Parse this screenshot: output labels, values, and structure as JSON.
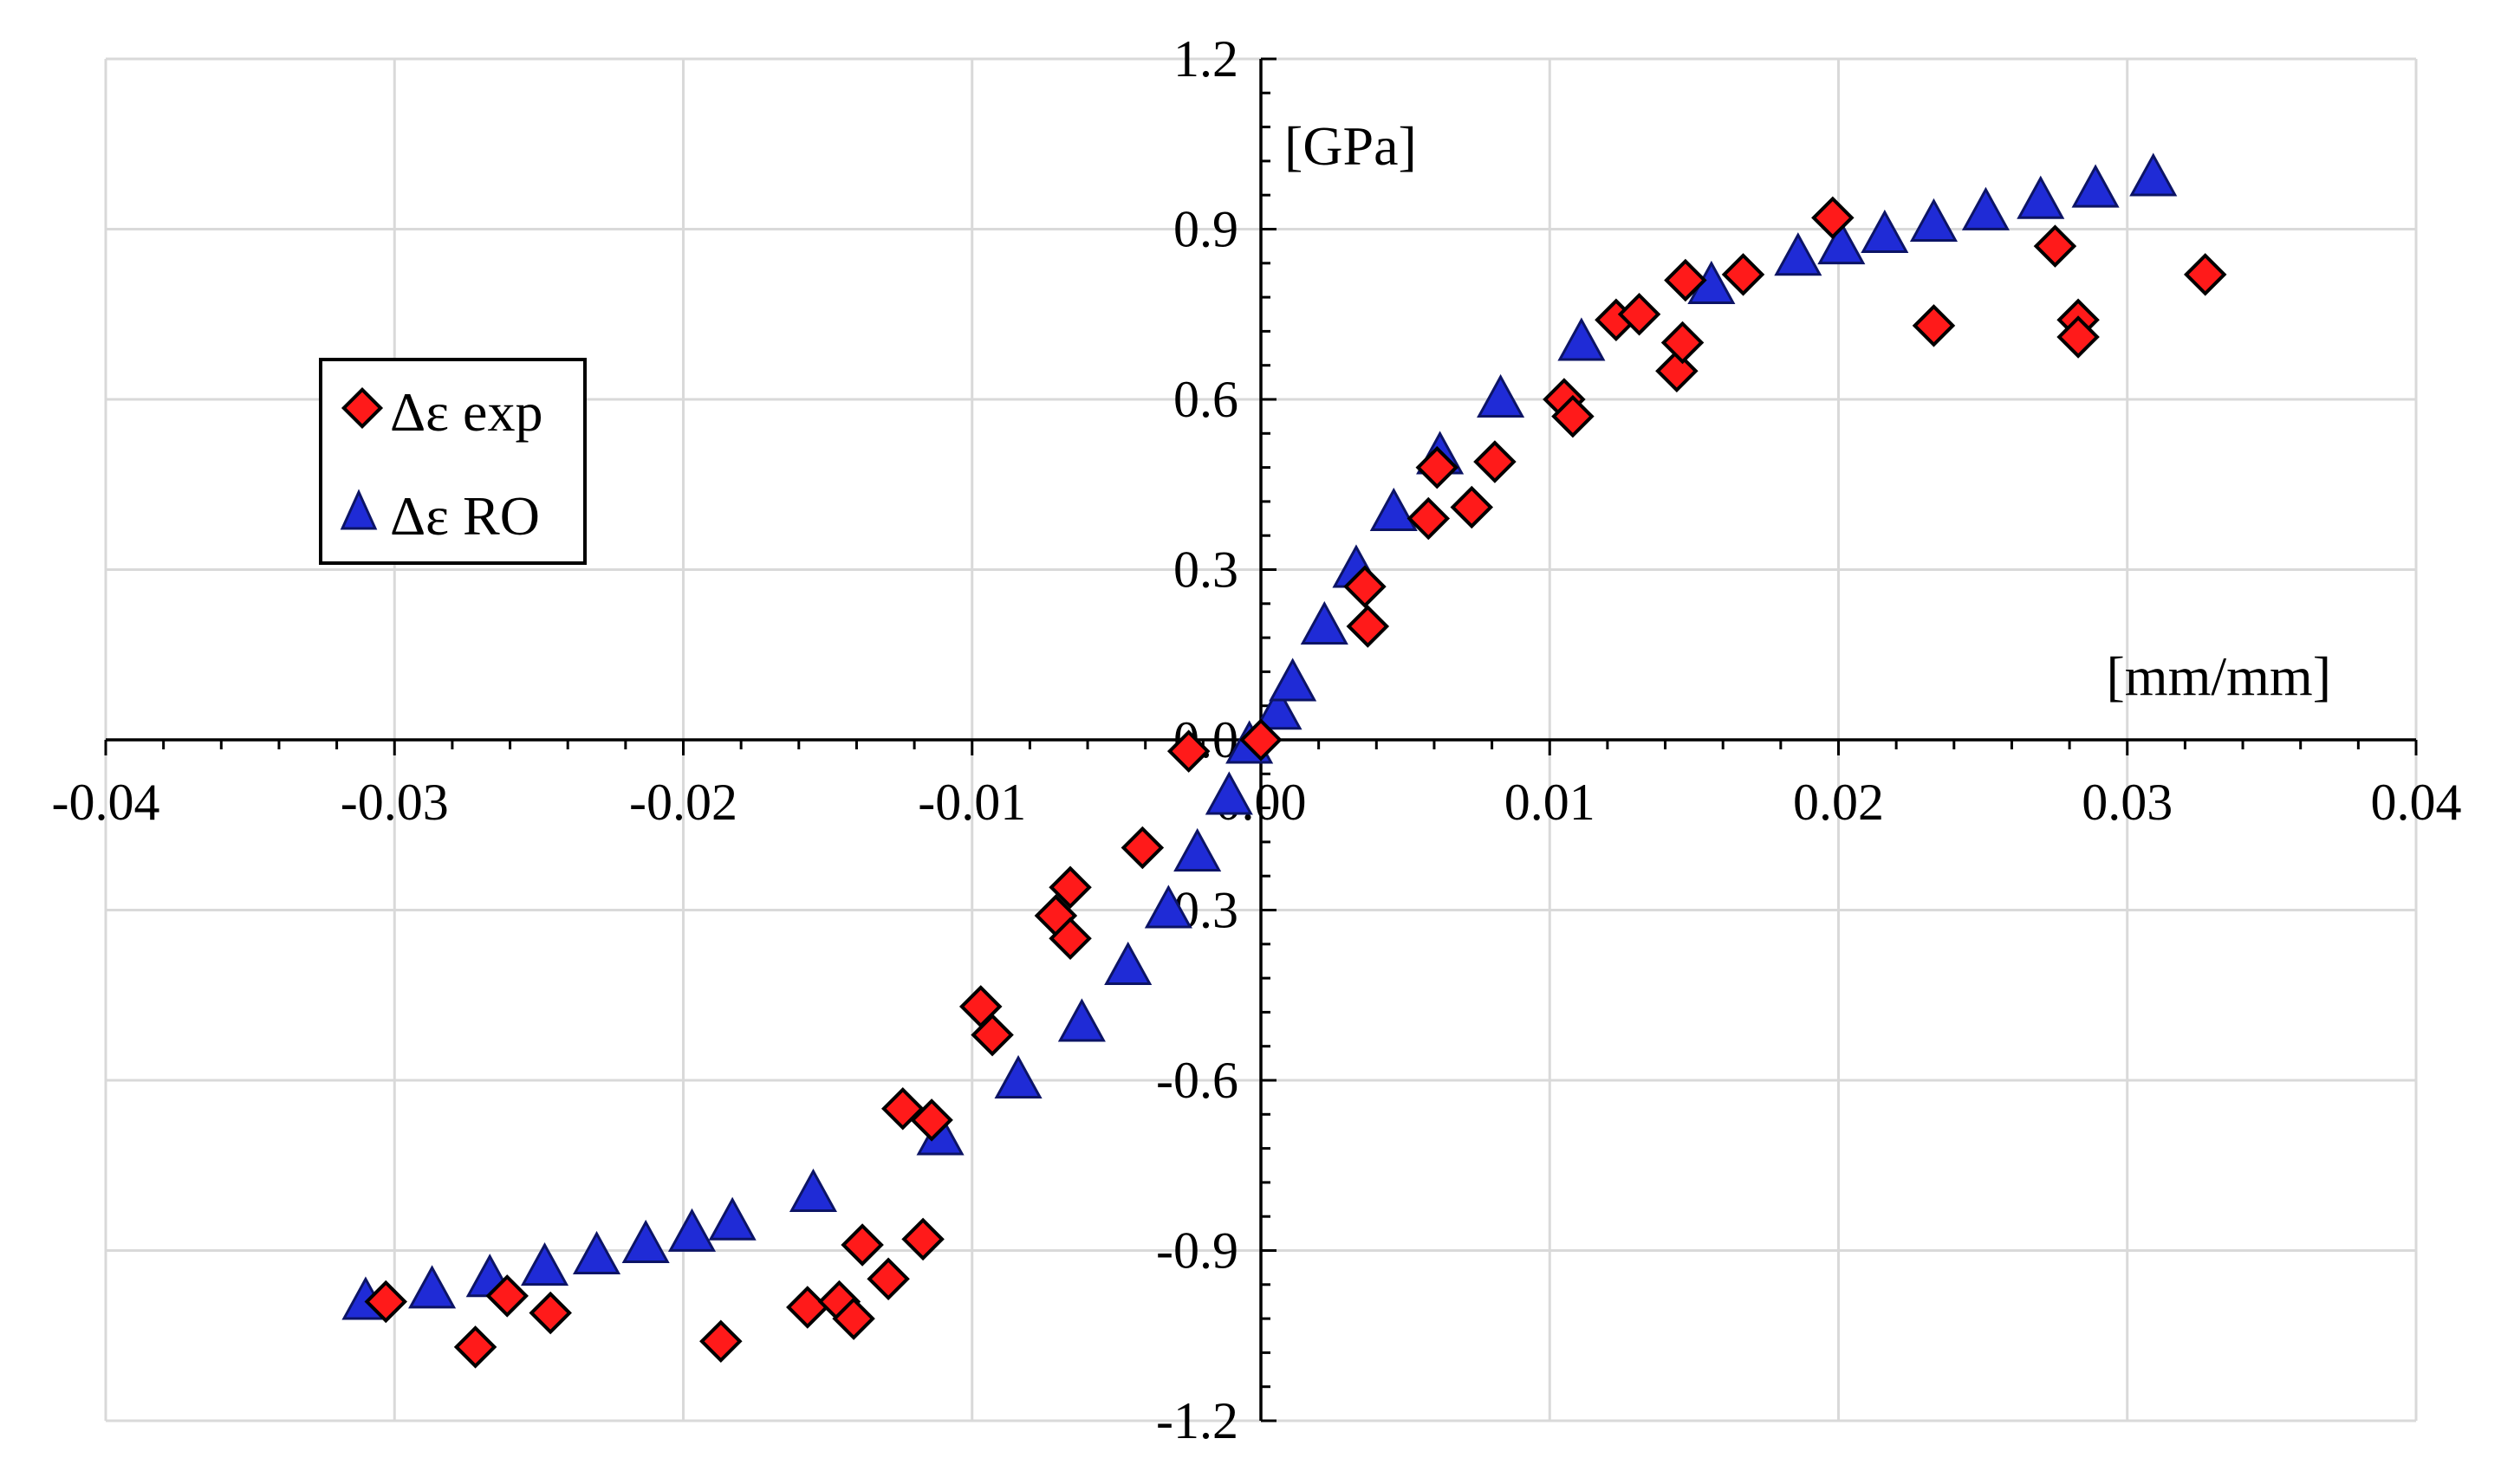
{
  "chart_data": {
    "type": "scatter",
    "title": "",
    "xlabel": "[mm/mm]",
    "ylabel": "[GPa]",
    "xlim": [
      -0.04,
      0.04
    ],
    "ylim": [
      -1.2,
      1.2
    ],
    "x_major_ticks": [
      -0.04,
      -0.03,
      -0.02,
      -0.01,
      0.0,
      0.01,
      0.02,
      0.03,
      0.04
    ],
    "y_major_ticks": [
      -1.2,
      -0.9,
      -0.6,
      -0.3,
      0.0,
      0.3,
      0.6,
      0.9,
      1.2
    ],
    "x_tick_labels": [
      "-0.04",
      "-0.03",
      "-0.02",
      "-0.01",
      "0.00",
      "0.01",
      "0.02",
      "0.03",
      "0.04"
    ],
    "y_tick_labels": [
      "-1.2",
      "-0.9",
      "-0.6",
      "-0.3",
      "0.0",
      "0.3",
      "0.6",
      "0.9",
      "1.2"
    ],
    "grid": true,
    "legend_position": "left",
    "series": [
      {
        "name": "Δε exp",
        "marker": "diamond",
        "color": "#ff1a1a",
        "points": [
          [
            -0.0303,
            -0.99
          ],
          [
            -0.0272,
            -1.07
          ],
          [
            -0.0261,
            -0.98
          ],
          [
            -0.0246,
            -1.01
          ],
          [
            -0.0187,
            -1.06
          ],
          [
            -0.0157,
            -1.0
          ],
          [
            -0.0146,
            -0.99
          ],
          [
            -0.0141,
            -1.02
          ],
          [
            -0.0138,
            -0.89
          ],
          [
            -0.0129,
            -0.95
          ],
          [
            -0.0124,
            -0.65
          ],
          [
            -0.0117,
            -0.88
          ],
          [
            -0.0114,
            -0.67
          ],
          [
            -0.0097,
            -0.47
          ],
          [
            -0.0093,
            -0.52
          ],
          [
            -0.0071,
            -0.31
          ],
          [
            -0.0066,
            -0.26
          ],
          [
            -0.0066,
            -0.35
          ],
          [
            -0.0041,
            -0.19
          ],
          [
            -0.0025,
            -0.02
          ],
          [
            0.0,
            0.0
          ],
          [
            0.0036,
            0.27
          ],
          [
            0.0037,
            0.2
          ],
          [
            0.0058,
            0.39
          ],
          [
            0.0061,
            0.48
          ],
          [
            0.0073,
            0.41
          ],
          [
            0.0081,
            0.49
          ],
          [
            0.0105,
            0.6
          ],
          [
            0.0108,
            0.57
          ],
          [
            0.0123,
            0.74
          ],
          [
            0.0131,
            0.75
          ],
          [
            0.0144,
            0.65
          ],
          [
            0.0146,
            0.7
          ],
          [
            0.0147,
            0.81
          ],
          [
            0.0167,
            0.82
          ],
          [
            0.0198,
            0.92
          ],
          [
            0.0233,
            0.73
          ],
          [
            0.0275,
            0.87
          ],
          [
            0.0283,
            0.74
          ],
          [
            0.0283,
            0.71
          ],
          [
            0.0327,
            0.82
          ]
        ]
      },
      {
        "name": "Δε RO",
        "marker": "triangle",
        "color": "#1f2bd6",
        "points": [
          [
            -0.031,
            -0.99
          ],
          [
            -0.0287,
            -0.97
          ],
          [
            -0.0267,
            -0.95
          ],
          [
            -0.0248,
            -0.93
          ],
          [
            -0.023,
            -0.91
          ],
          [
            -0.0213,
            -0.89
          ],
          [
            -0.0197,
            -0.87
          ],
          [
            -0.0183,
            -0.85
          ],
          [
            -0.0155,
            -0.8
          ],
          [
            -0.0111,
            -0.7
          ],
          [
            -0.0084,
            -0.6
          ],
          [
            -0.0062,
            -0.5
          ],
          [
            -0.0046,
            -0.4
          ],
          [
            -0.0032,
            -0.3
          ],
          [
            -0.0022,
            -0.2
          ],
          [
            -0.0011,
            -0.1
          ],
          [
            -0.0004,
            -0.01
          ],
          [
            0.0006,
            0.05
          ],
          [
            0.0011,
            0.1
          ],
          [
            0.0022,
            0.2
          ],
          [
            0.0033,
            0.3
          ],
          [
            0.0046,
            0.4
          ],
          [
            0.0062,
            0.5
          ],
          [
            0.0083,
            0.6
          ],
          [
            0.0111,
            0.7
          ],
          [
            0.0156,
            0.8
          ],
          [
            0.0186,
            0.85
          ],
          [
            0.0201,
            0.87
          ],
          [
            0.0216,
            0.89
          ],
          [
            0.0233,
            0.91
          ],
          [
            0.0251,
            0.93
          ],
          [
            0.027,
            0.95
          ],
          [
            0.0289,
            0.97
          ],
          [
            0.0309,
            0.99
          ]
        ]
      }
    ]
  }
}
